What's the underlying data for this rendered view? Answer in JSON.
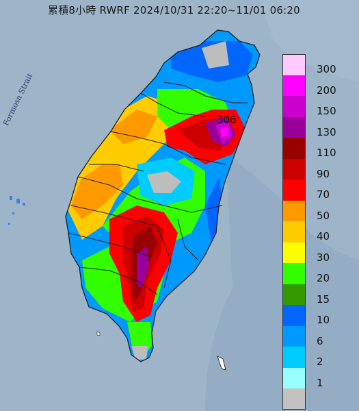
{
  "title": "累積8小時 RWRF 2024/10/31 22:20~11/01 06:20",
  "map_label": "Formosa Strait",
  "peak_value": "306",
  "colors": {
    "sea": "#9db4c9",
    "land_no_rain": "#bdbdbd",
    "border": "#1e1e1e"
  },
  "legend": [
    {
      "label": "300",
      "color": "#fec9fe"
    },
    {
      "label": "200",
      "color": "#fe00fe"
    },
    {
      "label": "150",
      "color": "#cc00cc"
    },
    {
      "label": "130",
      "color": "#99009a"
    },
    {
      "label": "110",
      "color": "#990000"
    },
    {
      "label": "90",
      "color": "#cc0000"
    },
    {
      "label": "70",
      "color": "#fe0000"
    },
    {
      "label": "50",
      "color": "#fe9900"
    },
    {
      "label": "40",
      "color": "#fecc00"
    },
    {
      "label": "30",
      "color": "#fefe00"
    },
    {
      "label": "20",
      "color": "#33fe00"
    },
    {
      "label": "15",
      "color": "#339900"
    },
    {
      "label": "10",
      "color": "#0066fe"
    },
    {
      "label": "6",
      "color": "#0099fe"
    },
    {
      "label": "2",
      "color": "#00ccfe"
    },
    {
      "label": "1",
      "color": "#99fefe"
    },
    {
      "label": "",
      "color": "#c2c2c2"
    }
  ]
}
